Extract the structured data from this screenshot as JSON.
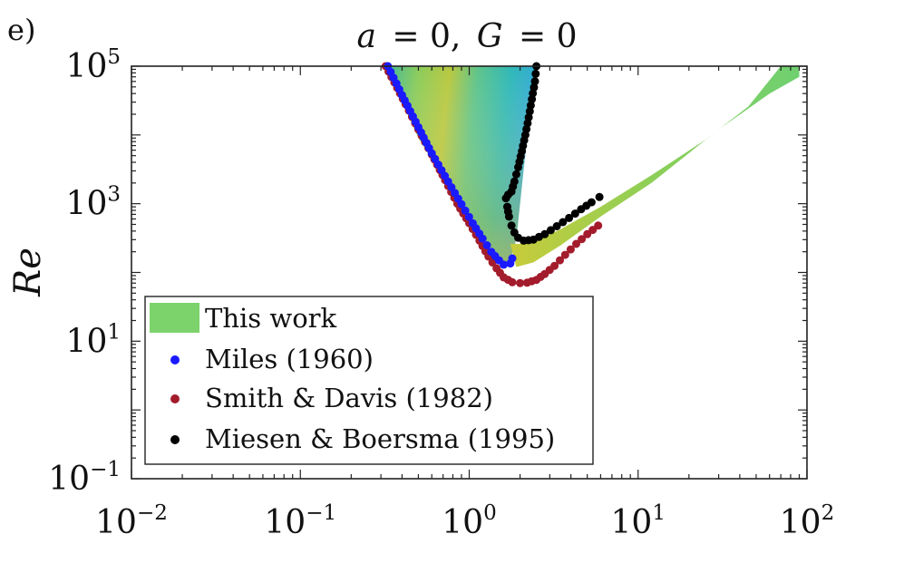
{
  "panel_label": "e)",
  "chart_data": {
    "type": "scatter",
    "title": "a = 0, G = 0",
    "title_parts": {
      "a": "a",
      "a_value": "= 0,",
      "g": "G",
      "g_value": "= 0"
    },
    "xlabel": "",
    "ylabel": "Re",
    "xscale": "log",
    "yscale": "log",
    "xlim": [
      0.01,
      100
    ],
    "ylim": [
      0.1,
      100000
    ],
    "xticks": [
      {
        "value": 0.01,
        "base": "10",
        "exp": "−2"
      },
      {
        "value": 0.1,
        "base": "10",
        "exp": "−1"
      },
      {
        "value": 1,
        "base": "10",
        "exp": "0"
      },
      {
        "value": 10,
        "base": "10",
        "exp": "1"
      },
      {
        "value": 100,
        "base": "10",
        "exp": "2"
      }
    ],
    "yticks": [
      {
        "value": 0.1,
        "base": "10",
        "exp": "−1"
      },
      {
        "value": 10,
        "base": "10",
        "exp": "1"
      },
      {
        "value": 1000,
        "base": "10",
        "exp": "3"
      },
      {
        "value": 100000,
        "base": "10",
        "exp": "5"
      }
    ],
    "legend": {
      "position": "bottom-left",
      "entries": [
        {
          "label": "This work",
          "color": "#7dd36b",
          "marker": "patch"
        },
        {
          "label": "Miles (1960)",
          "color": "#1a1aff",
          "marker": "dot"
        },
        {
          "label": "Smith & Davis (1982)",
          "color": "#a31c2c",
          "marker": "dot"
        },
        {
          "label": "Miesen & Boersma (1995)",
          "color": "#000000",
          "marker": "dot"
        }
      ]
    },
    "series": [
      {
        "name": "Miles (1960)",
        "color": "#1a1aff",
        "x": [
          0.33,
          0.4,
          0.5,
          0.6,
          0.75,
          0.9,
          1.05,
          1.2,
          1.35,
          1.5,
          1.6,
          1.75,
          1.8
        ],
        "y": [
          100000,
          38000,
          13000,
          5400,
          2100,
          980,
          520,
          310,
          200,
          150,
          130,
          135,
          160
        ]
      },
      {
        "name": "Smith & Davis (1982)",
        "color": "#a31c2c",
        "x": [
          0.32,
          0.36,
          0.42,
          0.5,
          0.6,
          0.72,
          0.85,
          1.0,
          1.15,
          1.3,
          1.45,
          1.6,
          1.8,
          2.0,
          2.2,
          2.5,
          2.8,
          3.2,
          3.7,
          4.3,
          5.0,
          5.8
        ],
        "y": [
          100000,
          58000,
          28000,
          12000,
          5200,
          2200,
          1000,
          520,
          290,
          170,
          115,
          85,
          72,
          70,
          71,
          78,
          95,
          125,
          180,
          260,
          360,
          480
        ]
      },
      {
        "name": "Miesen & Boersma (1995)",
        "color": "#000000",
        "x": [
          2.5,
          2.45,
          2.35,
          2.25,
          2.15,
          2.05,
          1.95,
          1.85,
          1.78,
          1.7,
          1.65,
          1.68,
          1.72,
          1.78,
          1.85,
          1.95,
          2.1,
          2.4,
          2.8,
          3.3,
          3.9,
          4.6,
          5.3,
          5.9
        ],
        "y": [
          100000,
          60000,
          33000,
          18000,
          10000,
          5800,
          3400,
          2100,
          1500,
          1350,
          1200,
          900,
          650,
          480,
          380,
          320,
          290,
          300,
          360,
          470,
          620,
          830,
          1050,
          1250
        ]
      },
      {
        "name": "This work",
        "color": "#7dd36b",
        "regions": [
          {
            "description": "instability wedge",
            "x": [
              0.32,
              1.7,
              2.5
            ],
            "y": [
              100000,
              120,
              100000
            ]
          },
          {
            "description": "instability band",
            "x_start": 2.0,
            "x_end": 70,
            "y_start": 150,
            "y_end": 100000
          }
        ]
      }
    ]
  }
}
